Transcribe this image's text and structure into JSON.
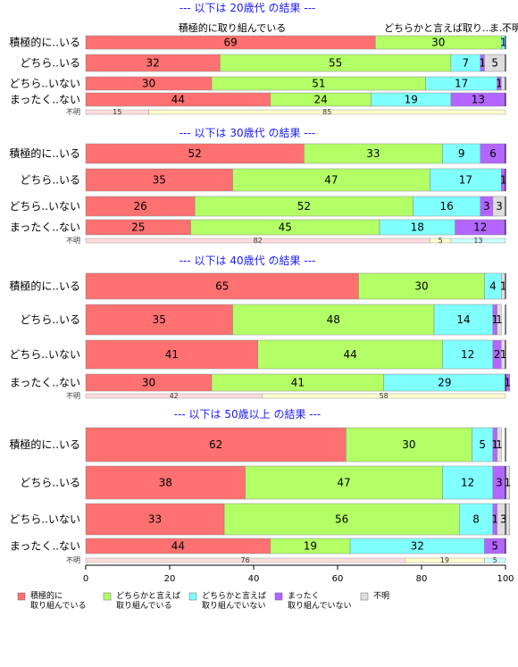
{
  "chart_data": {
    "type": "bar",
    "orientation": "horizontal",
    "stacked": true,
    "xlim": [
      0,
      100
    ],
    "xticks": [
      0,
      20,
      40,
      60,
      80,
      100
    ],
    "header_labels": [
      "積極的に取り組んでいる",
      "どちらかと言えば取り...",
      "ま...",
      "不明"
    ],
    "colors": [
      "#ff7070",
      "#b3ff66",
      "#80ffff",
      "#b266ff",
      "#dddddd"
    ],
    "legend": [
      {
        "line1": "積極的に",
        "line2": "取り組んでいる"
      },
      {
        "line1": "どちらかと言えば",
        "line2": "取り組んでいる"
      },
      {
        "line1": "どちらかと言えば",
        "line2": "取り組んでいない"
      },
      {
        "line1": "まったく",
        "line2": "取り組んでいない"
      },
      {
        "line1": "不明",
        "line2": ""
      }
    ],
    "panels": [
      {
        "title": "--- 以下は 20歳代 の結果 ---",
        "categories": [
          "積極的に..いる",
          "どちら..いる",
          "どちら..いない",
          "まったく..ない"
        ],
        "values": [
          [
            69,
            30,
            1,
            0,
            0
          ],
          [
            32,
            55,
            7,
            1,
            5
          ],
          [
            30,
            51,
            17,
            1,
            1
          ],
          [
            44,
            24,
            19,
            13,
            0
          ]
        ],
        "labels": [
          [
            "69",
            "30",
            "1",
            "",
            ""
          ],
          [
            "32",
            "55",
            "7",
            "1",
            "5"
          ],
          [
            "30",
            "51",
            "17",
            "1",
            ""
          ],
          [
            "44",
            "24",
            "19",
            "13",
            ""
          ]
        ],
        "count_label": "不明",
        "count_values": [
          15,
          85,
          0,
          0,
          0
        ],
        "count_labels": [
          "15",
          "85",
          "",
          "",
          ""
        ]
      },
      {
        "title": "--- 以下は 30歳代 の結果 ---",
        "categories": [
          "積極的に..いる",
          "どちら..いる",
          "どちら..いない",
          "まったく..ない"
        ],
        "values": [
          [
            52,
            33,
            9,
            6,
            0
          ],
          [
            35,
            47,
            17,
            1,
            0
          ],
          [
            26,
            52,
            16,
            3,
            3
          ],
          [
            25,
            45,
            18,
            12,
            0
          ]
        ],
        "labels": [
          [
            "52",
            "33",
            "9",
            "6",
            ""
          ],
          [
            "35",
            "47",
            "17",
            "1",
            ""
          ],
          [
            "26",
            "52",
            "16",
            "3",
            "3"
          ],
          [
            "25",
            "45",
            "18",
            "12",
            ""
          ]
        ],
        "count_label": "不明",
        "count_values": [
          82,
          5,
          13,
          0,
          0
        ],
        "count_labels": [
          "82",
          "5",
          "13",
          "",
          ""
        ]
      },
      {
        "title": "--- 以下は 40歳代 の結果 ---",
        "categories": [
          "積極的に..いる",
          "どちら..いる",
          "どちら..いない",
          "まったく..ない"
        ],
        "values": [
          [
            65,
            30,
            4,
            0,
            1
          ],
          [
            35,
            48,
            14,
            1,
            1
          ],
          [
            41,
            44,
            12,
            2,
            1
          ],
          [
            30,
            41,
            29,
            1,
            0
          ]
        ],
        "labels": [
          [
            "65",
            "30",
            "4",
            "",
            "1"
          ],
          [
            "35",
            "48",
            "14",
            "1",
            "1"
          ],
          [
            "41",
            "44",
            "12",
            "2",
            "1"
          ],
          [
            "30",
            "41",
            "29",
            "1",
            ""
          ]
        ],
        "count_label": "不明",
        "count_values": [
          42,
          58,
          0,
          0,
          0
        ],
        "count_labels": [
          "42",
          "58",
          "",
          "",
          ""
        ]
      },
      {
        "title": "--- 以下は 50歳以上 の結果 ---",
        "categories": [
          "積極的に..いる",
          "どちら..いる",
          "どちら..いない",
          "まったく..ない"
        ],
        "values": [
          [
            62,
            30,
            5,
            1,
            1
          ],
          [
            38,
            47,
            12,
            3,
            1
          ],
          [
            33,
            56,
            8,
            1,
            3
          ],
          [
            44,
            19,
            32,
            5,
            0
          ]
        ],
        "labels": [
          [
            "62",
            "30",
            "5",
            "1",
            "1"
          ],
          [
            "38",
            "47",
            "12",
            "3",
            "1"
          ],
          [
            "33",
            "56",
            "8",
            "1",
            "3"
          ],
          [
            "44",
            "19",
            "32",
            "5",
            ""
          ]
        ],
        "count_label": "不明",
        "count_values": [
          76,
          19,
          5,
          0,
          0
        ],
        "count_labels": [
          "76",
          "19",
          "5",
          "",
          ""
        ]
      }
    ]
  }
}
